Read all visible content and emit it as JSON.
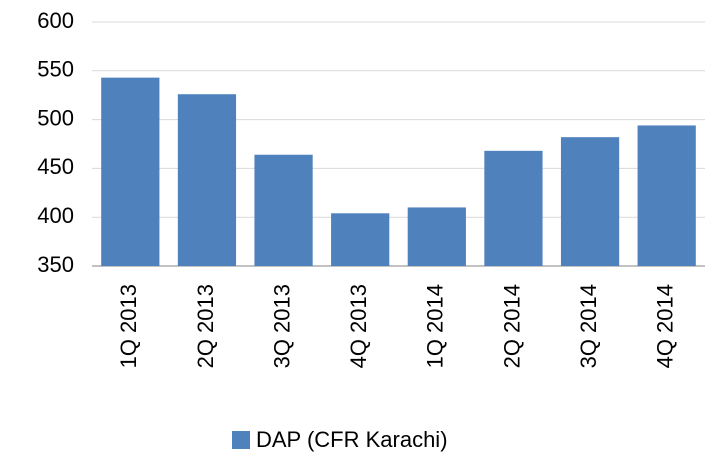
{
  "chart_data": {
    "type": "bar",
    "categories": [
      "1Q 2013",
      "2Q 2013",
      "3Q 2013",
      "4Q 2013",
      "1Q 2014",
      "2Q 2014",
      "3Q 2014",
      "4Q 2014"
    ],
    "series": [
      {
        "name": "DAP (CFR Karachi)",
        "color": "#4f81bd",
        "values": [
          543,
          526,
          464,
          404,
          410,
          468,
          482,
          494
        ]
      }
    ],
    "ylim": [
      350,
      600
    ],
    "yticks": [
      350,
      400,
      450,
      500,
      550,
      600
    ],
    "grid": true,
    "legend": "bottom"
  }
}
